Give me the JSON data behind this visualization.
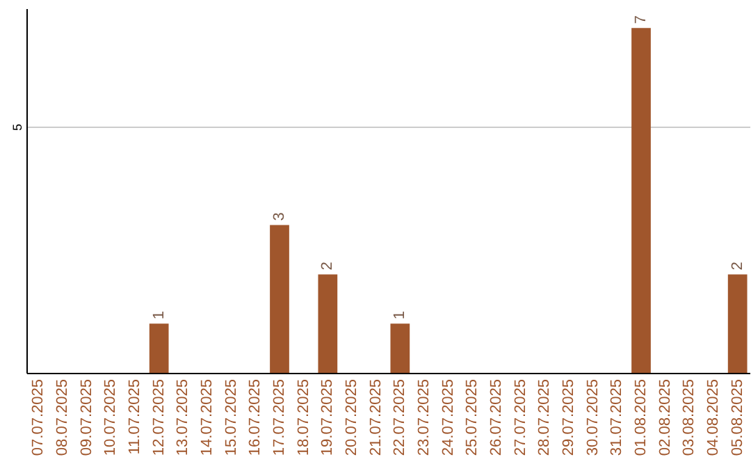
{
  "chart_data": {
    "type": "bar",
    "categories": [
      "07.07.2025",
      "08.07.2025",
      "09.07.2025",
      "10.07.2025",
      "11.07.2025",
      "12.07.2025",
      "13.07.2025",
      "14.07.2025",
      "15.07.2025",
      "16.07.2025",
      "17.07.2025",
      "18.07.2025",
      "19.07.2025",
      "20.07.2025",
      "21.07.2025",
      "22.07.2025",
      "23.07.2025",
      "24.07.2025",
      "25.07.2025",
      "26.07.2025",
      "27.07.2025",
      "28.07.2025",
      "29.07.2025",
      "30.07.2025",
      "31.07.2025",
      "01.08.2025",
      "02.08.2025",
      "03.08.2025",
      "04.08.2025",
      "05.08.2025"
    ],
    "values": [
      0,
      0,
      0,
      0,
      0,
      1,
      0,
      0,
      0,
      0,
      3,
      0,
      2,
      0,
      0,
      1,
      0,
      0,
      0,
      0,
      0,
      0,
      0,
      0,
      0,
      7,
      0,
      0,
      0,
      2
    ],
    "value_labels": [
      null,
      null,
      null,
      null,
      null,
      "1",
      null,
      null,
      null,
      null,
      "3",
      null,
      "2",
      null,
      null,
      "1",
      null,
      null,
      null,
      null,
      null,
      null,
      null,
      null,
      null,
      "7",
      null,
      null,
      null,
      "2"
    ],
    "color": "#a0562c",
    "ylim": [
      0,
      7.4
    ],
    "yticks": [
      5
    ],
    "grid": "y"
  }
}
